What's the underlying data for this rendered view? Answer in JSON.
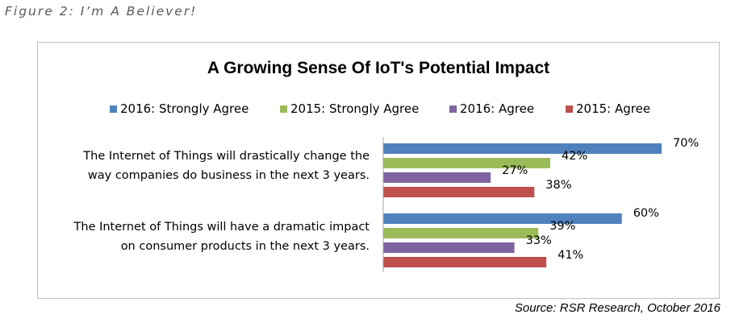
{
  "figure_caption": "Figure 2: I’m A Believer!",
  "source": "Source: RSR Research, October 2016",
  "chart_data": {
    "type": "bar",
    "orientation": "horizontal",
    "title": "A Growing Sense Of IoT's Potential Impact",
    "categories": [
      [
        "The Internet of Things will drastically change the",
        "way companies do business in the next 3 years."
      ],
      [
        "The Internet of Things will have a dramatic impact",
        "on consumer products in the next 3 years."
      ]
    ],
    "series": [
      {
        "name": "2016: Strongly Agree",
        "values": [
          70,
          60
        ],
        "labels": [
          "70%",
          "60%"
        ],
        "color": "#4f81bd"
      },
      {
        "name": "2015: Strongly Agree",
        "values": [
          42,
          39
        ],
        "labels": [
          "42%",
          "39%"
        ],
        "color": "#9bbb59"
      },
      {
        "name": "2016: Agree",
        "values": [
          27,
          33
        ],
        "labels": [
          "27%",
          "33%"
        ],
        "color": "#8064a2"
      },
      {
        "name": "2015: Agree",
        "values": [
          38,
          41
        ],
        "labels": [
          "38%",
          "41%"
        ],
        "color": "#c0504d"
      }
    ],
    "xlim": [
      0,
      100
    ],
    "value_unit": "%",
    "legend_position": "top",
    "grid": false,
    "gridlines": false
  }
}
